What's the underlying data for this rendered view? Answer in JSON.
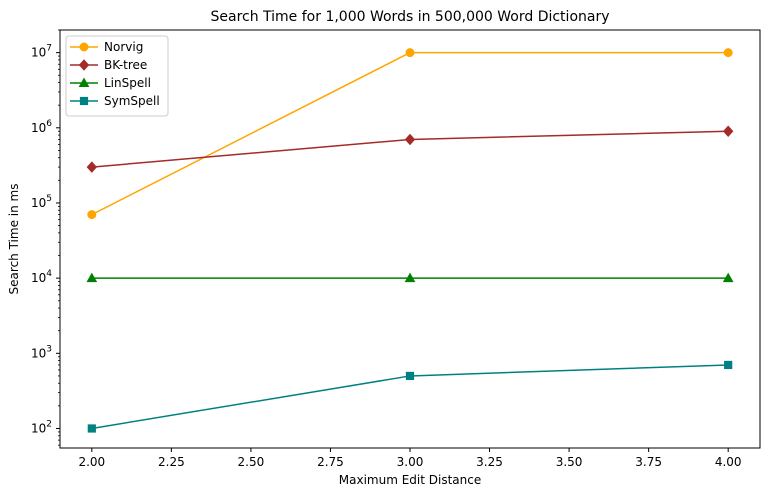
{
  "chart_data": {
    "type": "line",
    "title": "Search Time for 1,000 Words in 500,000 Word Dictionary",
    "xlabel": "Maximum Edit Distance",
    "ylabel": "Search Time in ms",
    "x": [
      2,
      3,
      4
    ],
    "xlim": [
      1.9,
      4.1
    ],
    "xticks": [
      2.0,
      2.25,
      2.5,
      2.75,
      3.0,
      3.25,
      3.5,
      3.75,
      4.0
    ],
    "xtick_labels": [
      "2.00",
      "2.25",
      "2.50",
      "2.75",
      "3.00",
      "3.25",
      "3.50",
      "3.75",
      "4.00"
    ],
    "yscale": "log",
    "ylim": [
      55,
      20000000
    ],
    "yticks": [
      {
        "value": 100,
        "base": "10",
        "exp": "2"
      },
      {
        "value": 1000,
        "base": "10",
        "exp": "3"
      },
      {
        "value": 10000,
        "base": "10",
        "exp": "4"
      },
      {
        "value": 100000,
        "base": "10",
        "exp": "5"
      },
      {
        "value": 1000000,
        "base": "10",
        "exp": "6"
      },
      {
        "value": 10000000,
        "base": "10",
        "exp": "7"
      }
    ],
    "grid": false,
    "legend_position": "top-left",
    "series": [
      {
        "name": "Norvig",
        "color": "#ffa500",
        "marker": "circle",
        "values": [
          70000,
          10000000,
          10000000
        ]
      },
      {
        "name": "BK-tree",
        "color": "#a52a2a",
        "marker": "diamond",
        "values": [
          300000,
          700000,
          900000
        ]
      },
      {
        "name": "LinSpell",
        "color": "#008000",
        "marker": "triangle",
        "values": [
          10000,
          10000,
          10000
        ]
      },
      {
        "name": "SymSpell",
        "color": "#008080",
        "marker": "square",
        "values": [
          100,
          500,
          700
        ]
      }
    ]
  }
}
